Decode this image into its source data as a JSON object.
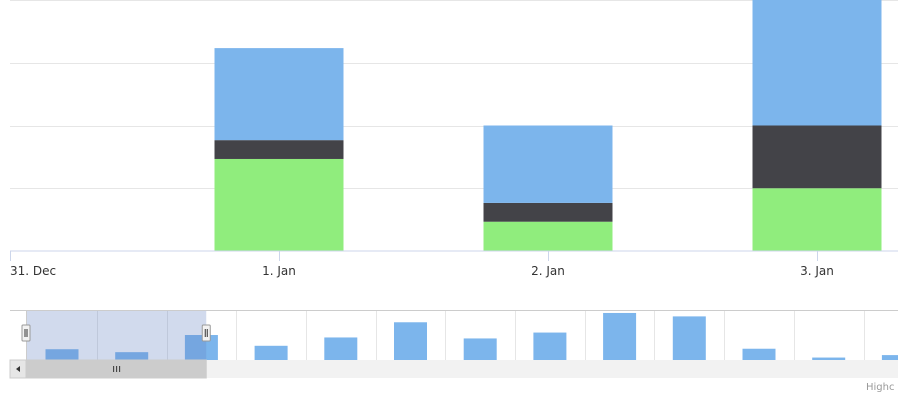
{
  "chart_data": {
    "type": "bar",
    "stacked": true,
    "categories": [
      "31. Dec",
      "1. Jan",
      "2. Jan",
      "3. Jan"
    ],
    "series": [
      {
        "values": [
          0,
          4.4,
          3.7,
          6.6
        ],
        "color": "#7cb5ec"
      },
      {
        "values": [
          0,
          0.9,
          0.9,
          3.0
        ],
        "color": "#434348"
      },
      {
        "values": [
          0,
          4.4,
          1.4,
          3.0
        ],
        "color": "#90ed7d"
      }
    ],
    "ylim": [
      0,
      12
    ],
    "grid": true,
    "navigator": {
      "values": [
        2.2,
        1.6,
        5.1,
        2.9,
        4.6,
        7.7,
        4.4,
        5.6,
        9.6,
        8.9,
        2.3,
        0.5,
        1.0
      ],
      "ylim": [
        0,
        10
      ],
      "color": "#7cb5ec",
      "selected_range": [
        0,
        2.5
      ]
    },
    "credits": "Highc"
  }
}
